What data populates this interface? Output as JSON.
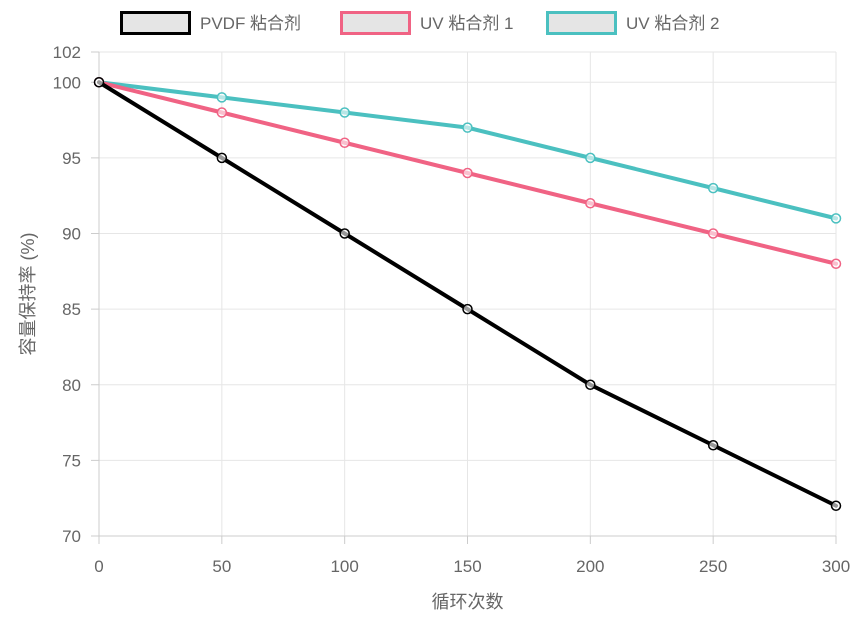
{
  "chart_data": {
    "type": "line",
    "title": "",
    "xlabel": "循环次数",
    "ylabel": "容量保持率 (%)",
    "x": [
      0,
      50,
      100,
      150,
      200,
      250,
      300
    ],
    "xlim": [
      0,
      300
    ],
    "ylim": [
      70,
      102
    ],
    "x_ticks": [
      "0",
      "50",
      "100",
      "150",
      "200",
      "250",
      "300"
    ],
    "y_ticks": [
      "70",
      "75",
      "80",
      "85",
      "90",
      "95",
      "100",
      "102"
    ],
    "grid": true,
    "legend_position": "top",
    "series": [
      {
        "name": "PVDF 粘合剂",
        "color": "#000000",
        "values": [
          100,
          95,
          90,
          85,
          80,
          76,
          72
        ]
      },
      {
        "name": "UV 粘合剂 1",
        "color": "#f06384",
        "values": [
          100,
          98,
          96,
          94,
          92,
          90,
          88
        ]
      },
      {
        "name": "UV 粘合剂 2",
        "color": "#4bc0c0",
        "values": [
          100,
          99,
          98,
          97,
          95,
          93,
          91
        ]
      }
    ]
  }
}
